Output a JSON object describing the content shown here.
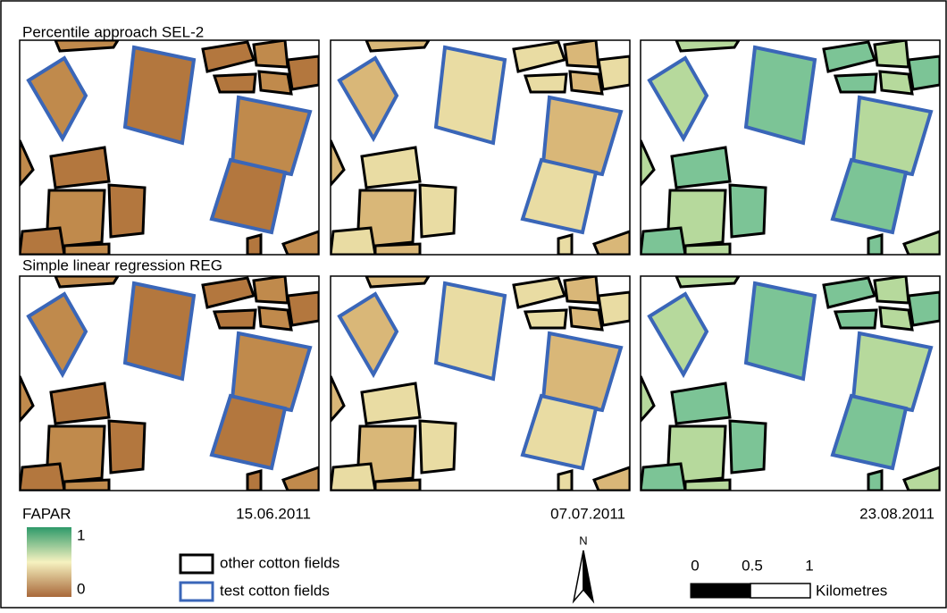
{
  "rows": [
    {
      "title": "Percentile approach SEL-2"
    },
    {
      "title": "Simple linear regression REG"
    }
  ],
  "dates": [
    "15.06.2011",
    "07.07.2011",
    "23.08.2011"
  ],
  "legend": {
    "title": "FAPAR",
    "max": 1,
    "min": 0,
    "items": [
      "other cotton fields",
      "test cotton fields"
    ]
  },
  "north": "N",
  "scale": {
    "ticks": [
      0,
      0.5,
      1
    ],
    "unit": "Kilometres"
  }
}
